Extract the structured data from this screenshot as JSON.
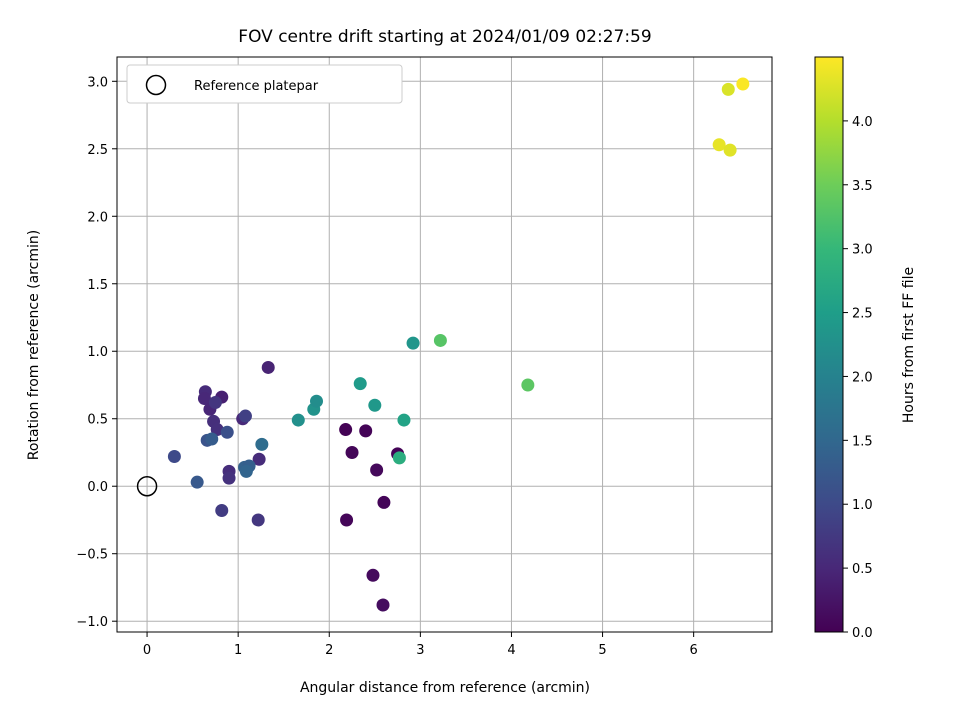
{
  "chart_data": {
    "type": "scatter",
    "title": "FOV centre drift starting at 2024/01/09 02:27:59",
    "xlabel": "Angular distance from reference (arcmin)",
    "ylabel": "Rotation from reference (arcmin)",
    "xlim": [
      -0.33,
      6.86
    ],
    "ylim": [
      -1.08,
      3.18
    ],
    "xticks": [
      0,
      1,
      2,
      3,
      4,
      5,
      6
    ],
    "yticks": [
      -1.0,
      -0.5,
      0.0,
      0.5,
      1.0,
      1.5,
      2.0,
      2.5,
      3.0
    ],
    "grid": true,
    "legend": {
      "placement": "top-left",
      "entries": [
        "Reference platepar"
      ]
    },
    "reference_point": {
      "x": 0,
      "y": 0,
      "label": "Reference platepar"
    },
    "colorbar": {
      "label": "Hours from first FF file",
      "colormap": "viridis",
      "range": [
        0,
        4.5
      ],
      "ticks": [
        0.0,
        0.5,
        1.0,
        1.5,
        2.0,
        2.5,
        3.0,
        3.5,
        4.0
      ]
    },
    "points": [
      {
        "x": 2.18,
        "y": 0.42,
        "t": 0.02
      },
      {
        "x": 2.4,
        "y": 0.41,
        "t": 0.04
      },
      {
        "x": 2.25,
        "y": 0.25,
        "t": 0.06
      },
      {
        "x": 2.75,
        "y": 0.24,
        "t": 0.03
      },
      {
        "x": 2.52,
        "y": 0.12,
        "t": 0.1
      },
      {
        "x": 2.6,
        "y": -0.12,
        "t": 0.05
      },
      {
        "x": 2.19,
        "y": -0.25,
        "t": 0.07
      },
      {
        "x": 2.48,
        "y": -0.66,
        "t": 0.12
      },
      {
        "x": 2.59,
        "y": -0.88,
        "t": 0.15
      },
      {
        "x": 1.33,
        "y": 0.88,
        "t": 0.45
      },
      {
        "x": 0.82,
        "y": 0.66,
        "t": 0.4
      },
      {
        "x": 0.64,
        "y": 0.7,
        "t": 0.55
      },
      {
        "x": 0.63,
        "y": 0.65,
        "t": 0.5
      },
      {
        "x": 0.69,
        "y": 0.57,
        "t": 0.48
      },
      {
        "x": 0.73,
        "y": 0.48,
        "t": 0.6
      },
      {
        "x": 0.77,
        "y": 0.42,
        "t": 0.62
      },
      {
        "x": 0.75,
        "y": 0.62,
        "t": 0.7
      },
      {
        "x": 1.05,
        "y": 0.5,
        "t": 0.52
      },
      {
        "x": 1.08,
        "y": 0.52,
        "t": 0.85
      },
      {
        "x": 0.9,
        "y": 0.11,
        "t": 0.58
      },
      {
        "x": 0.9,
        "y": 0.06,
        "t": 0.65
      },
      {
        "x": 1.23,
        "y": 0.2,
        "t": 0.56
      },
      {
        "x": 1.22,
        "y": -0.25,
        "t": 0.72
      },
      {
        "x": 0.82,
        "y": -0.18,
        "t": 0.8
      },
      {
        "x": 0.88,
        "y": 0.4,
        "t": 1.1
      },
      {
        "x": 0.66,
        "y": 0.34,
        "t": 1.15
      },
      {
        "x": 0.71,
        "y": 0.35,
        "t": 1.3
      },
      {
        "x": 0.3,
        "y": 0.22,
        "t": 1.0
      },
      {
        "x": 0.55,
        "y": 0.03,
        "t": 1.25
      },
      {
        "x": 1.07,
        "y": 0.14,
        "t": 1.4
      },
      {
        "x": 1.12,
        "y": 0.15,
        "t": 1.35
      },
      {
        "x": 1.09,
        "y": 0.11,
        "t": 1.45
      },
      {
        "x": 1.26,
        "y": 0.31,
        "t": 1.6
      },
      {
        "x": 1.66,
        "y": 0.49,
        "t": 2.25
      },
      {
        "x": 1.83,
        "y": 0.57,
        "t": 2.3
      },
      {
        "x": 1.86,
        "y": 0.63,
        "t": 2.2
      },
      {
        "x": 2.34,
        "y": 0.76,
        "t": 2.45
      },
      {
        "x": 2.5,
        "y": 0.6,
        "t": 2.4
      },
      {
        "x": 2.82,
        "y": 0.49,
        "t": 2.6
      },
      {
        "x": 2.77,
        "y": 0.21,
        "t": 2.8
      },
      {
        "x": 2.92,
        "y": 1.06,
        "t": 2.35
      },
      {
        "x": 3.22,
        "y": 1.08,
        "t": 3.3
      },
      {
        "x": 4.18,
        "y": 0.75,
        "t": 3.35
      },
      {
        "x": 6.28,
        "y": 2.53,
        "t": 4.35
      },
      {
        "x": 6.4,
        "y": 2.49,
        "t": 4.3
      },
      {
        "x": 6.38,
        "y": 2.94,
        "t": 4.25
      },
      {
        "x": 6.54,
        "y": 2.98,
        "t": 4.48
      }
    ]
  }
}
